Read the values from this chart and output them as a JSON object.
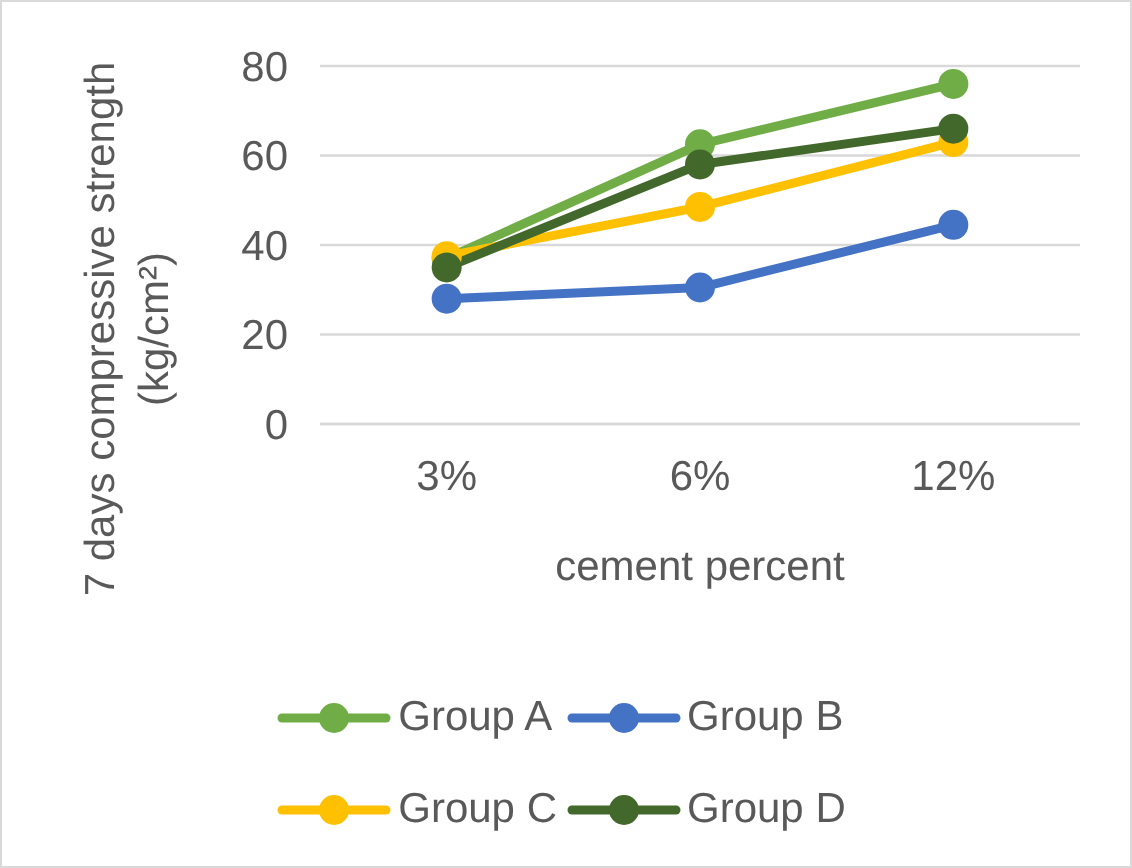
{
  "chart_data": {
    "type": "line",
    "categories": [
      "3%",
      "6%",
      "12%"
    ],
    "xlabel": "cement percent",
    "ylabel": "7 days compressive strength (kg/cm²)",
    "series": [
      {
        "name": "Group A",
        "color": "#70ad47",
        "values": [
          37,
          62.5,
          76
        ]
      },
      {
        "name": "Group B",
        "color": "#4472c4",
        "values": [
          28,
          30.5,
          44.5
        ]
      },
      {
        "name": "Group C",
        "color": "#ffc000",
        "values": [
          37.5,
          48.5,
          63
        ]
      },
      {
        "name": "Group D",
        "color": "#43682b",
        "values": [
          35,
          58,
          66
        ]
      }
    ],
    "ylim": [
      0,
      80
    ],
    "yticks": [
      0,
      20,
      40,
      60,
      80
    ],
    "grid": "y",
    "legend": "bottom",
    "marker": "circle"
  }
}
